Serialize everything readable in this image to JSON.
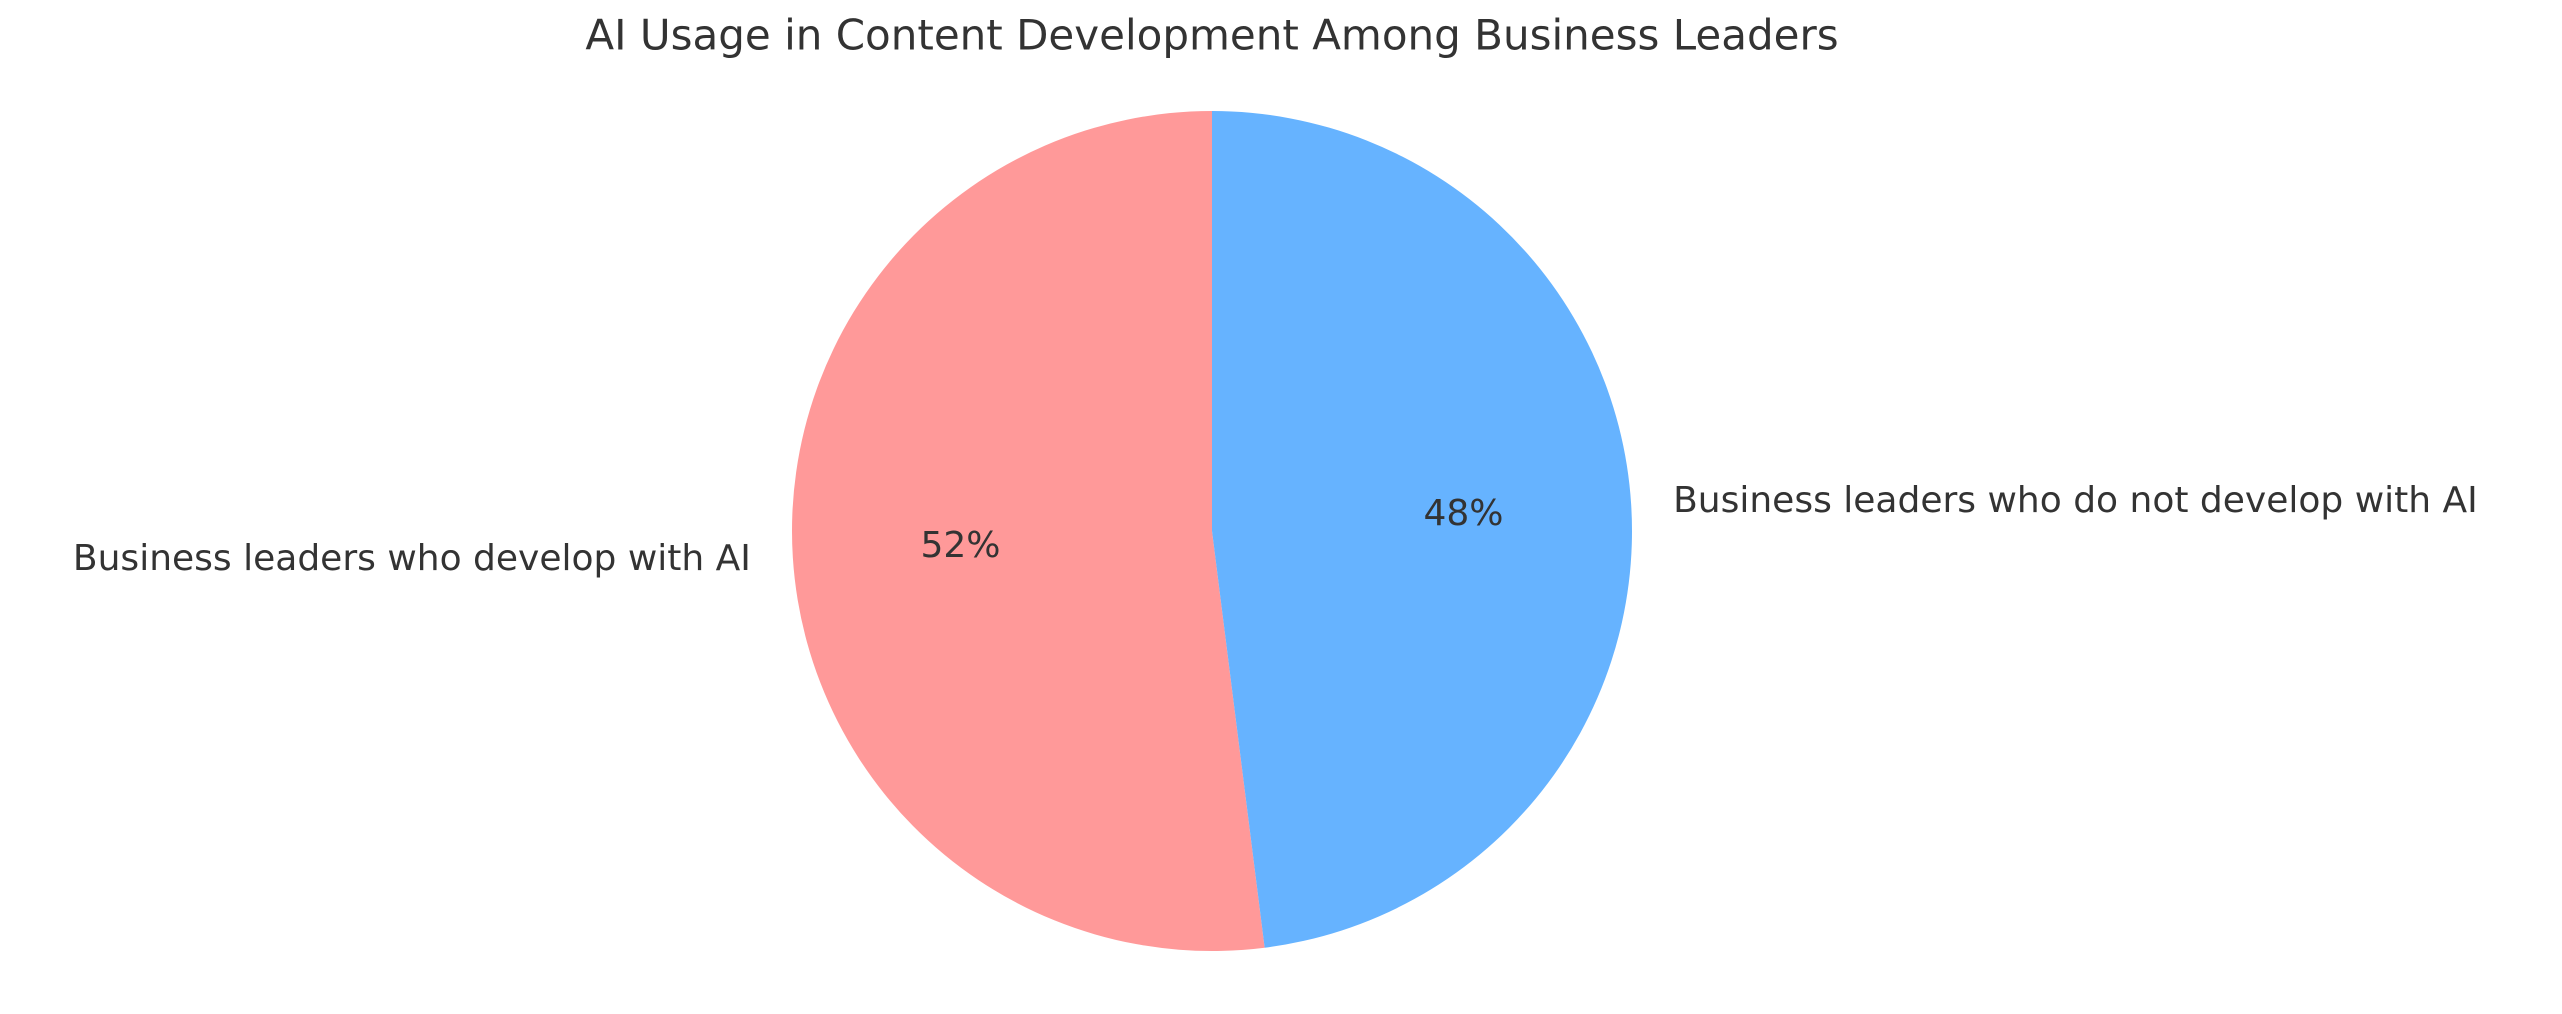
{
  "chart_data": {
    "type": "pie",
    "title": "AI Usage in Content Development Among Business Leaders",
    "categories": [
      "Business leaders who develop with AI",
      "Business leaders who do not develop with AI"
    ],
    "values": [
      52,
      48
    ],
    "value_labels": [
      "52%",
      "48%"
    ],
    "colors": [
      "#ff9999",
      "#66b3ff"
    ]
  }
}
